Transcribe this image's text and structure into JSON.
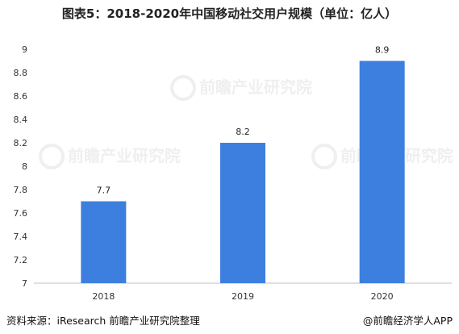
{
  "title": "图表5：2018-2020年中国移动社交用户规模（单位：亿人）",
  "footer": {
    "source": "资料来源：iResearch 前瞻产业研究院整理",
    "brand": "@前瞻经济学人APP"
  },
  "watermark": "前瞻产业研究院",
  "chart_data": {
    "type": "bar",
    "title": "图表5：2018-2020年中国移动社交用户规模（单位：亿人）",
    "categories": [
      "2018",
      "2019",
      "2020"
    ],
    "values": [
      7.7,
      8.2,
      8.9
    ],
    "data_labels": [
      "7.7",
      "8.2",
      "8.9"
    ],
    "yticks": [
      "7",
      "7.2",
      "7.4",
      "7.6",
      "7.8",
      "8",
      "8.2",
      "8.4",
      "8.6",
      "8.8",
      "9"
    ],
    "ylim": [
      7,
      9
    ],
    "xlabel": "",
    "ylabel": "",
    "grid": false,
    "bar_color": "#3d7fdf"
  }
}
